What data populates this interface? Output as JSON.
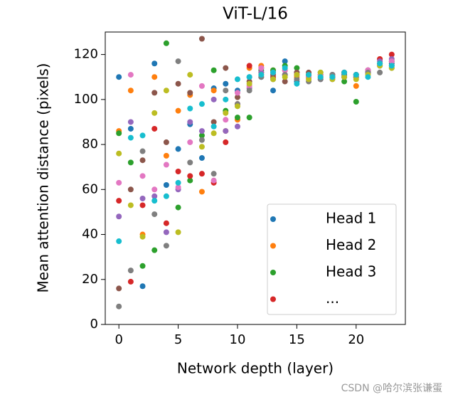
{
  "chart_data": {
    "type": "scatter",
    "title": "ViT-L/16",
    "xlabel": "Network depth (layer)",
    "ylabel": "Mean attention distance (pixels)",
    "x": [
      0,
      1,
      2,
      3,
      4,
      5,
      6,
      7,
      8,
      9,
      10,
      11,
      12,
      13,
      14,
      15,
      16,
      17,
      18,
      19,
      20,
      21,
      22,
      23
    ],
    "xlim": [
      -1.15,
      24.15
    ],
    "ylim": [
      0,
      130
    ],
    "xticks": [
      0,
      5,
      10,
      15,
      20
    ],
    "yticks": [
      0,
      20,
      40,
      60,
      80,
      100,
      120
    ],
    "legend": "lower right",
    "series": [
      {
        "name": "Head 1",
        "color": "#1f77b4",
        "values": [
          110,
          87,
          17,
          116,
          62,
          78,
          89,
          74,
          105,
          107,
          104,
          110,
          110,
          104,
          117,
          108,
          110,
          110,
          111,
          111,
          110,
          113,
          115,
          116
        ]
      },
      {
        "name": "Head 2",
        "color": "#ff7f0e",
        "values": [
          86,
          104,
          40,
          110,
          75,
          95,
          102,
          59,
          104,
          86,
          91,
          114,
          115,
          113,
          113,
          110,
          111,
          110,
          111,
          112,
          106,
          112,
          118,
          117
        ]
      },
      {
        "name": "Head 3",
        "color": "#2ca02c",
        "values": [
          85,
          72,
          26,
          33,
          125,
          52,
          64,
          84,
          113,
          95,
          92,
          92,
          113,
          113,
          115,
          114,
          111,
          112,
          110,
          108,
          99,
          112,
          116,
          115
        ]
      },
      {
        "name": "...",
        "color": "#d62728",
        "values": [
          55,
          19,
          53,
          87,
          45,
          68,
          66,
          67,
          63,
          81,
          98,
          115,
          112,
          110,
          111,
          111,
          110,
          111,
          110,
          112,
          111,
          113,
          118,
          120
        ]
      },
      {
        "color": "#9467bd",
        "values": [
          48,
          90,
          56,
          57,
          41,
          60,
          90,
          86,
          100,
          86,
          88,
          105,
          112,
          112,
          111,
          112,
          110,
          109,
          111,
          110,
          111,
          112,
          117,
          118
        ]
      },
      {
        "color": "#8c564b",
        "values": [
          16,
          60,
          73,
          103,
          81,
          107,
          103,
          127,
          90,
          114,
          101,
          108,
          114,
          111,
          108,
          112,
          112,
          111,
          110,
          112,
          111,
          112,
          116,
          117
        ]
      },
      {
        "color": "#e377c2",
        "values": [
          63,
          111,
          66,
          60,
          71,
          61,
          81,
          106,
          64,
          91,
          103,
          106,
          114,
          112,
          113,
          111,
          110,
          111,
          109,
          110,
          110,
          113,
          115,
          117
        ]
      },
      {
        "color": "#7f7f7f",
        "values": [
          8,
          24,
          77,
          49,
          35,
          117,
          72,
          82,
          67,
          104,
          98,
          104,
          110,
          109,
          111,
          109,
          108,
          109,
          111,
          110,
          110,
          112,
          112,
          114
        ]
      },
      {
        "color": "#bcbd22",
        "values": [
          76,
          53,
          39,
          94,
          104,
          41,
          111,
          79,
          85,
          94,
          97,
          107,
          111,
          109,
          110,
          111,
          109,
          112,
          109,
          110,
          109,
          111,
          115,
          114
        ]
      },
      {
        "color": "#17becf",
        "values": [
          37,
          83,
          84,
          55,
          57,
          63,
          96,
          98,
          88,
          100,
          109,
          110,
          111,
          112,
          114,
          107,
          111,
          110,
          110,
          112,
          111,
          110,
          116,
          115
        ]
      }
    ]
  },
  "watermark": "CSDN @哈尔滨张谦蛋"
}
